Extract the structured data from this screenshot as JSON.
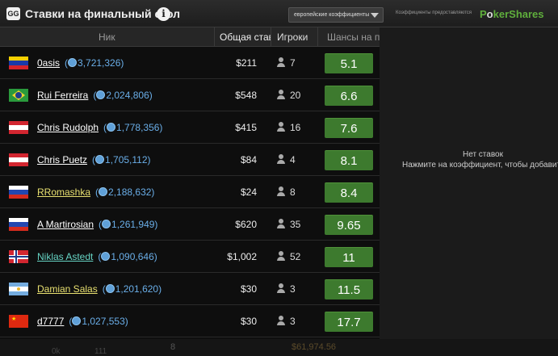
{
  "header": {
    "logo_text": "GG",
    "title": "Ставки на финальный стол",
    "odds_format": "европейские коэффициенты",
    "provider_text": "Коэффициенты предоставляются",
    "brand_a": "P",
    "brand_o": "o",
    "brand_b": "kerShares"
  },
  "columns": {
    "nick": "Ник",
    "total_bet": "Общая ставка",
    "players": "Игроки",
    "chance": "Шансы на победу"
  },
  "rows": [
    {
      "flag": "venezuela",
      "name": "0asis",
      "name_color": "#ffffff",
      "chips": "3,721,326",
      "bet": "$211",
      "players": "7",
      "odds": "5.1"
    },
    {
      "flag": "brazil",
      "name": "Rui Ferreira",
      "name_color": "#ffffff",
      "chips": "2,024,806",
      "bet": "$548",
      "players": "20",
      "odds": "6.6"
    },
    {
      "flag": "austria",
      "name": "Chris Rudolph",
      "name_color": "#ffffff",
      "chips": "1,778,356",
      "bet": "$415",
      "players": "16",
      "odds": "7.6"
    },
    {
      "flag": "austria",
      "name": "Chris Puetz",
      "name_color": "#ffffff",
      "chips": "1,705,112",
      "bet": "$84",
      "players": "4",
      "odds": "8.1"
    },
    {
      "flag": "russia",
      "name": "RRomashka",
      "name_color": "#e8e070",
      "chips": "2,188,632",
      "bet": "$24",
      "players": "8",
      "odds": "8.4"
    },
    {
      "flag": "russia",
      "name": "A Martirosian",
      "name_color": "#ffffff",
      "chips": "1,261,949",
      "bet": "$620",
      "players": "35",
      "odds": "9.65"
    },
    {
      "flag": "norway",
      "name": "Niklas Astedt",
      "name_color": "#66d4c4",
      "chips": "1,090,646",
      "bet": "$1,002",
      "players": "52",
      "odds": "11"
    },
    {
      "flag": "argentina",
      "name": "Damian Salas",
      "name_color": "#e8e070",
      "chips": "1,201,620",
      "bet": "$30",
      "players": "3",
      "odds": "11.5"
    },
    {
      "flag": "china",
      "name": "d7777",
      "name_color": "#ffffff",
      "chips": "1,027,553",
      "bet": "$30",
      "players": "3",
      "odds": "17.7"
    }
  ],
  "right_panel": {
    "no_bets": "Нет ставок",
    "hint": "Нажмите на коэффициент, чтобы добавить ставку"
  },
  "bottom": {
    "a": "0k",
    "b": "111",
    "c": "8",
    "d": "$61,974.56"
  }
}
